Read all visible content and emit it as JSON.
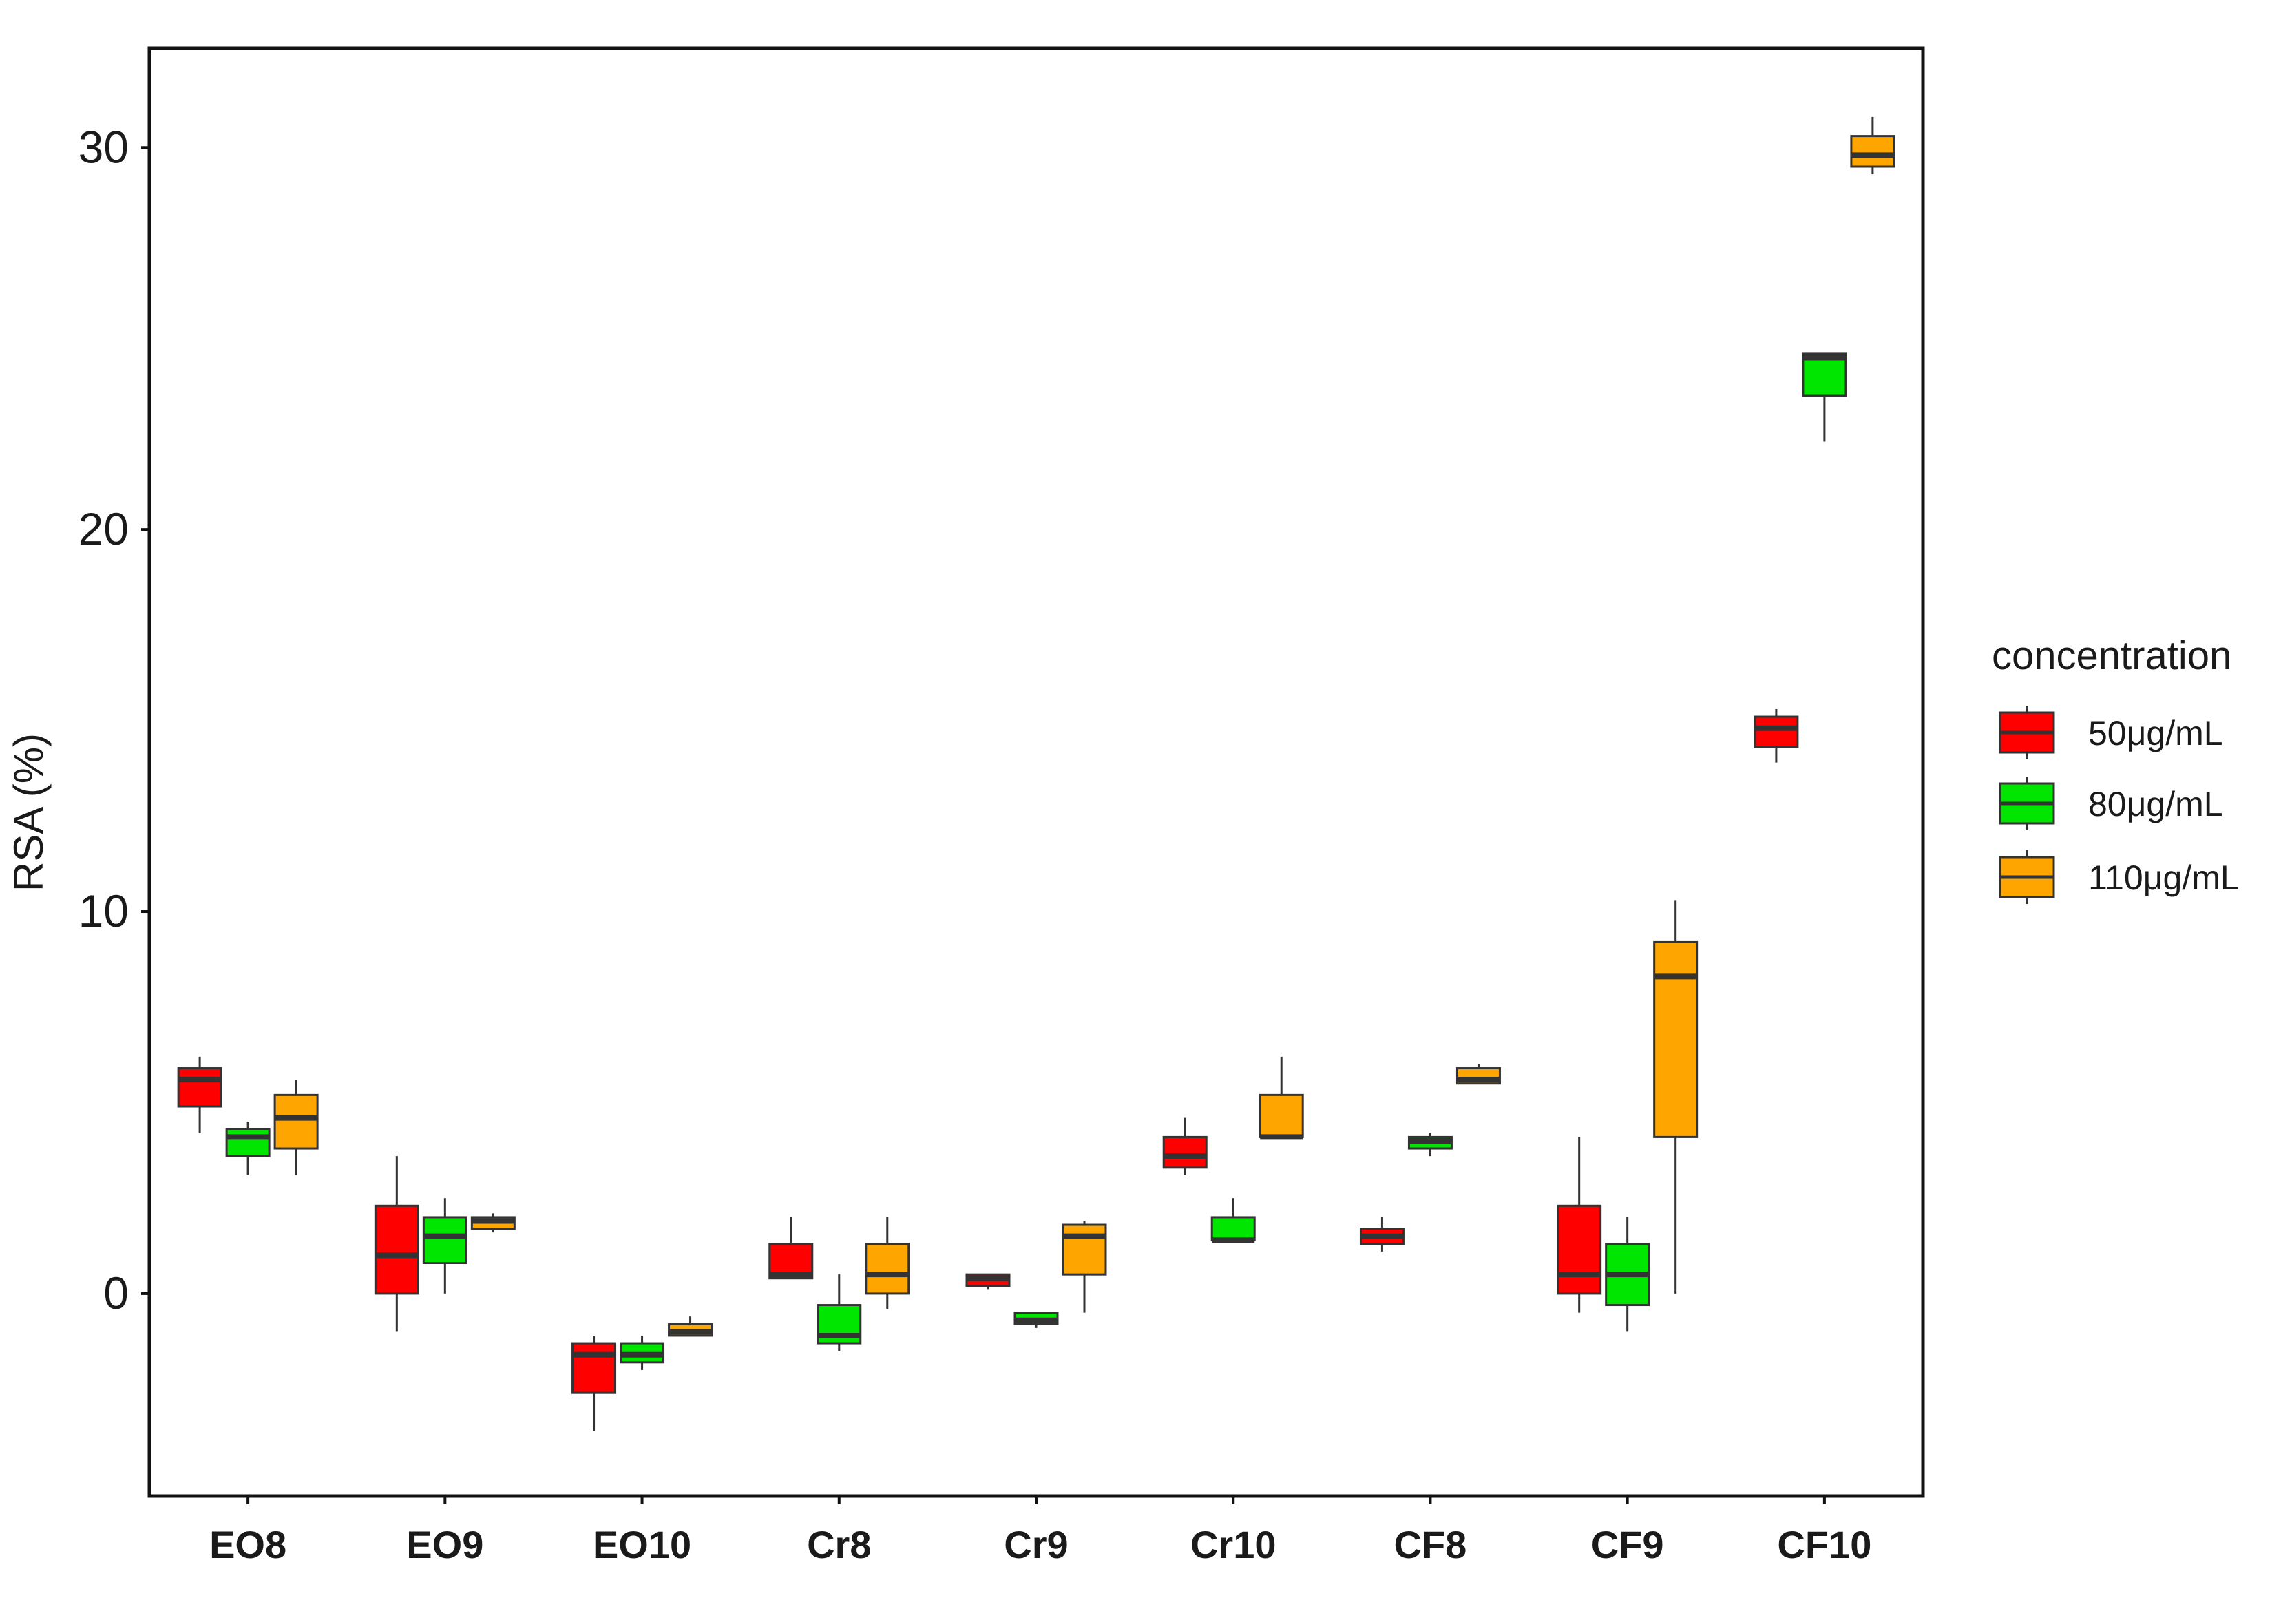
{
  "chart_data": {
    "type": "boxplot",
    "ylabel": "RSA (%)",
    "xlabel": "",
    "ylim": [
      -5.3,
      32.6
    ],
    "yticks": [
      0,
      10,
      20,
      30
    ],
    "grid": false,
    "legend_position": "right",
    "categories": [
      "EO8",
      "EO9",
      "EO10",
      "Cr8",
      "Cr9",
      "Cr10",
      "CF8",
      "CF9",
      "CF10"
    ],
    "legend": {
      "title": "concentration",
      "entries": [
        "50μg/mL",
        "80μg/mL",
        "110μg/mL"
      ]
    },
    "series": [
      {
        "name": "50μg/mL",
        "color": "#ff0000",
        "boxes": [
          {
            "whisker_low": 4.2,
            "q1": 4.9,
            "median": 5.6,
            "q3": 5.9,
            "whisker_high": 6.2
          },
          {
            "whisker_low": -1.0,
            "q1": 0.0,
            "median": 1.0,
            "q3": 2.3,
            "whisker_high": 3.6
          },
          {
            "whisker_low": -3.6,
            "q1": -2.6,
            "median": -1.6,
            "q3": -1.3,
            "whisker_high": -1.1
          },
          {
            "whisker_low": 0.4,
            "q1": 0.4,
            "median": 0.5,
            "q3": 1.3,
            "whisker_high": 2.0
          },
          {
            "whisker_low": 0.1,
            "q1": 0.2,
            "median": 0.4,
            "q3": 0.5,
            "whisker_high": 0.5
          },
          {
            "whisker_low": 3.1,
            "q1": 3.3,
            "median": 3.6,
            "q3": 4.1,
            "whisker_high": 4.6
          },
          {
            "whisker_low": 1.1,
            "q1": 1.3,
            "median": 1.5,
            "q3": 1.7,
            "whisker_high": 2.0
          },
          {
            "whisker_low": -0.5,
            "q1": 0.0,
            "median": 0.5,
            "q3": 2.3,
            "whisker_high": 4.1
          },
          {
            "whisker_low": 13.9,
            "q1": 14.3,
            "median": 14.8,
            "q3": 15.1,
            "whisker_high": 15.3
          }
        ]
      },
      {
        "name": "80μg/mL",
        "color": "#00e600",
        "boxes": [
          {
            "whisker_low": 3.1,
            "q1": 3.6,
            "median": 4.1,
            "q3": 4.3,
            "whisker_high": 4.5
          },
          {
            "whisker_low": 0.0,
            "q1": 0.8,
            "median": 1.5,
            "q3": 2.0,
            "whisker_high": 2.5
          },
          {
            "whisker_low": -2.0,
            "q1": -1.8,
            "median": -1.6,
            "q3": -1.3,
            "whisker_high": -1.1
          },
          {
            "whisker_low": -1.5,
            "q1": -1.3,
            "median": -1.1,
            "q3": -0.3,
            "whisker_high": 0.5
          },
          {
            "whisker_low": -0.9,
            "q1": -0.8,
            "median": -0.7,
            "q3": -0.5,
            "whisker_high": -0.5
          },
          {
            "whisker_low": 1.4,
            "q1": 1.4,
            "median": 1.4,
            "q3": 2.0,
            "whisker_high": 2.5
          },
          {
            "whisker_low": 3.6,
            "q1": 3.8,
            "median": 4.0,
            "q3": 4.1,
            "whisker_high": 4.2
          },
          {
            "whisker_low": -1.0,
            "q1": -0.3,
            "median": 0.5,
            "q3": 1.3,
            "whisker_high": 2.0
          },
          {
            "whisker_low": 22.3,
            "q1": 23.5,
            "median": 24.5,
            "q3": 24.6,
            "whisker_high": 24.6
          }
        ]
      },
      {
        "name": "110μg/mL",
        "color": "#ffa500",
        "boxes": [
          {
            "whisker_low": 3.1,
            "q1": 3.8,
            "median": 4.6,
            "q3": 5.2,
            "whisker_high": 5.6
          },
          {
            "whisker_low": 1.6,
            "q1": 1.7,
            "median": 1.9,
            "q3": 2.0,
            "whisker_high": 2.1
          },
          {
            "whisker_low": -1.1,
            "q1": -1.1,
            "median": -1.0,
            "q3": -0.8,
            "whisker_high": -0.6
          },
          {
            "whisker_low": -0.4,
            "q1": 0.0,
            "median": 0.5,
            "q3": 1.3,
            "whisker_high": 2.0
          },
          {
            "whisker_low": -0.5,
            "q1": 0.5,
            "median": 1.5,
            "q3": 1.8,
            "whisker_high": 1.9
          },
          {
            "whisker_low": 4.1,
            "q1": 4.1,
            "median": 4.1,
            "q3": 5.2,
            "whisker_high": 6.2
          },
          {
            "whisker_low": 5.5,
            "q1": 5.5,
            "median": 5.6,
            "q3": 5.9,
            "whisker_high": 6.0
          },
          {
            "whisker_low": 0.0,
            "q1": 4.1,
            "median": 8.3,
            "q3": 9.2,
            "whisker_high": 10.3
          },
          {
            "whisker_low": 29.3,
            "q1": 29.5,
            "median": 29.8,
            "q3": 30.3,
            "whisker_high": 30.8
          }
        ]
      }
    ]
  }
}
